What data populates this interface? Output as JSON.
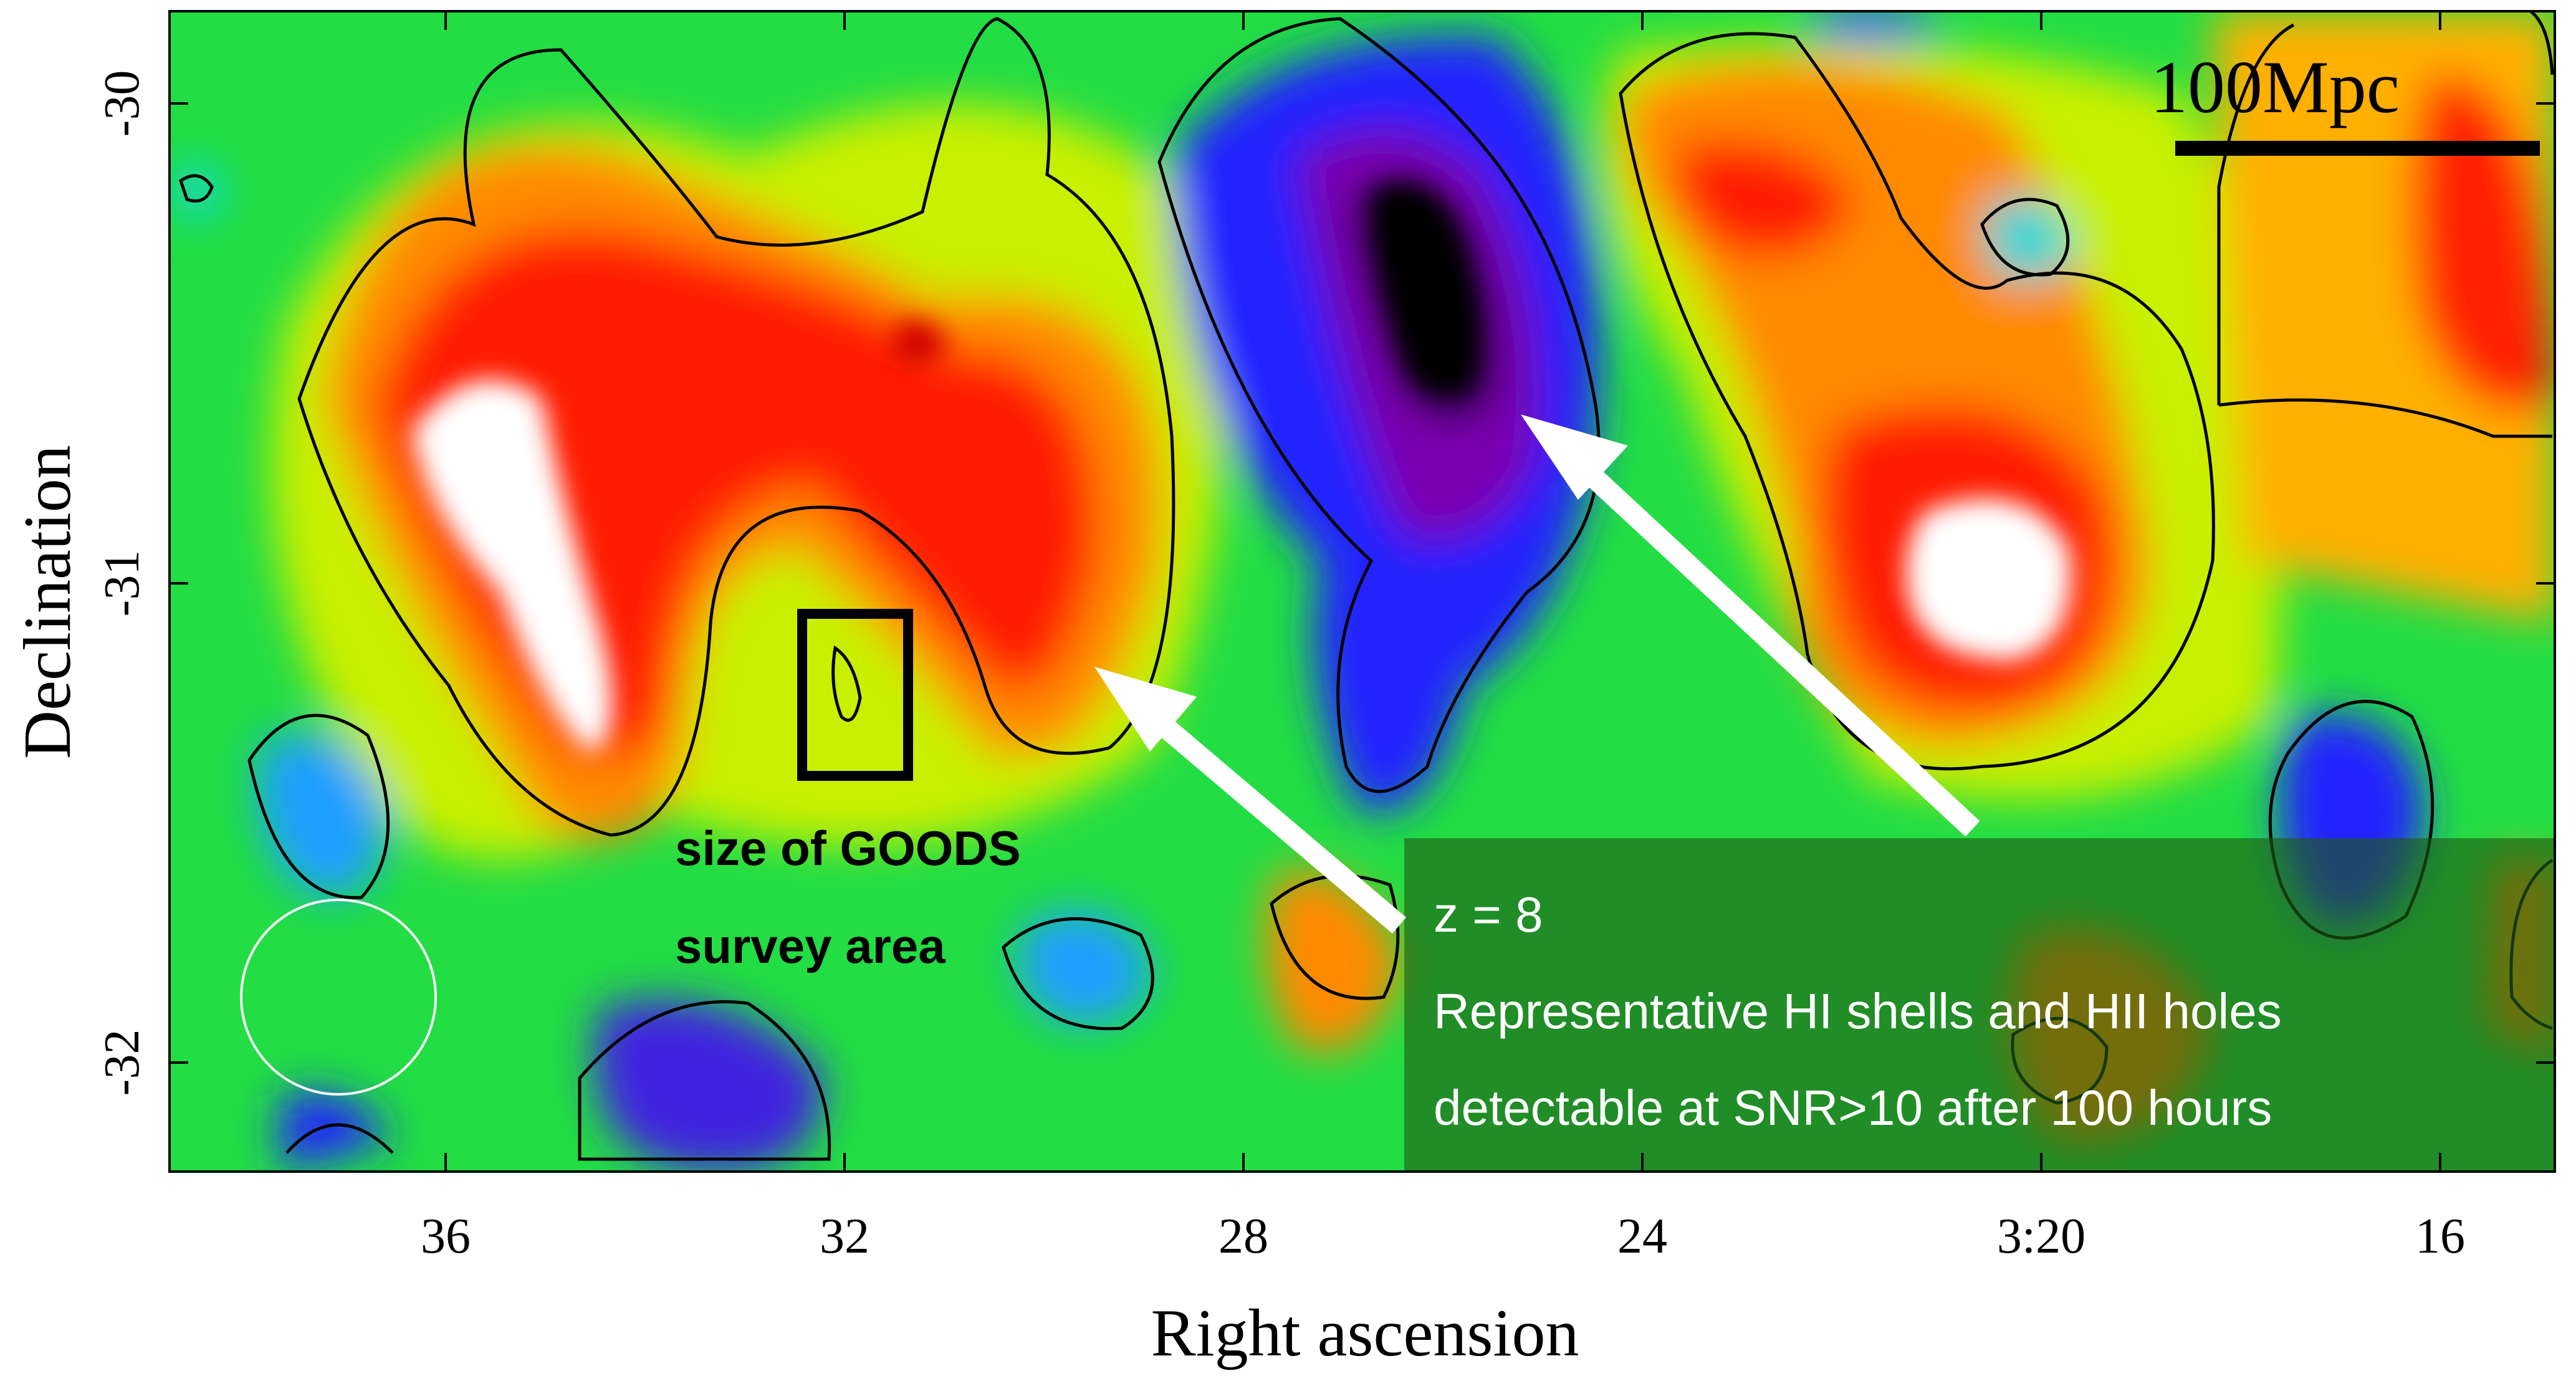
{
  "chart_data": {
    "type": "heatmap",
    "title": "",
    "xlabel": "Right ascension",
    "ylabel": "Declination",
    "x_ticks": [
      {
        "label": "36",
        "ra_minutes": 36
      },
      {
        "label": "32",
        "ra_minutes": 32
      },
      {
        "label": "28",
        "ra_minutes": 28
      },
      {
        "label": "24",
        "ra_minutes": 24
      },
      {
        "label": "3:20",
        "ra_minutes": 20
      },
      {
        "label": "16",
        "ra_minutes": 16
      }
    ],
    "y_ticks": [
      {
        "label": "-30",
        "dec": -30
      },
      {
        "label": "-31",
        "dec": -31
      },
      {
        "label": "-32",
        "dec": -32
      }
    ],
    "xlim": [
      39.7,
      14.7
    ],
    "ylim": [
      -32.23,
      -29.8
    ],
    "colormap": [
      "#000000",
      "#7a00b0",
      "#2020ff",
      "#1a9fff",
      "#10d8d8",
      "#22dd44",
      "#b8f000",
      "#ffb000",
      "#ff1a00",
      "#ffffff"
    ],
    "grid": false,
    "features": [
      {
        "kind": "HI shell (positive peak)",
        "ra_minutes": 35.2,
        "dec": -30.85,
        "color": "#ffffff"
      },
      {
        "kind": "HI shell (positive peak)",
        "ra_minutes": 20.6,
        "dec": -30.98,
        "color": "#ffffff"
      },
      {
        "kind": "HII hole (negative trough)",
        "ra_minutes": 25.5,
        "dec": -30.35,
        "color": "#000000"
      }
    ],
    "scale_bar": {
      "label": "100Mpc"
    },
    "goods_box": {
      "ra_minutes": [
        31.0,
        32.2
      ],
      "dec": [
        -31.08,
        -31.43
      ]
    },
    "beam": {
      "ra_minutes": 37.9,
      "dec": -31.88
    }
  },
  "annotations": {
    "goods_line1": "size of GOODS",
    "goods_line2": "survey area",
    "info_line1": "z = 8",
    "info_line2": "Representative HI shells and HII holes",
    "info_line3": "detectable at SNR>10 after 100 hours"
  }
}
